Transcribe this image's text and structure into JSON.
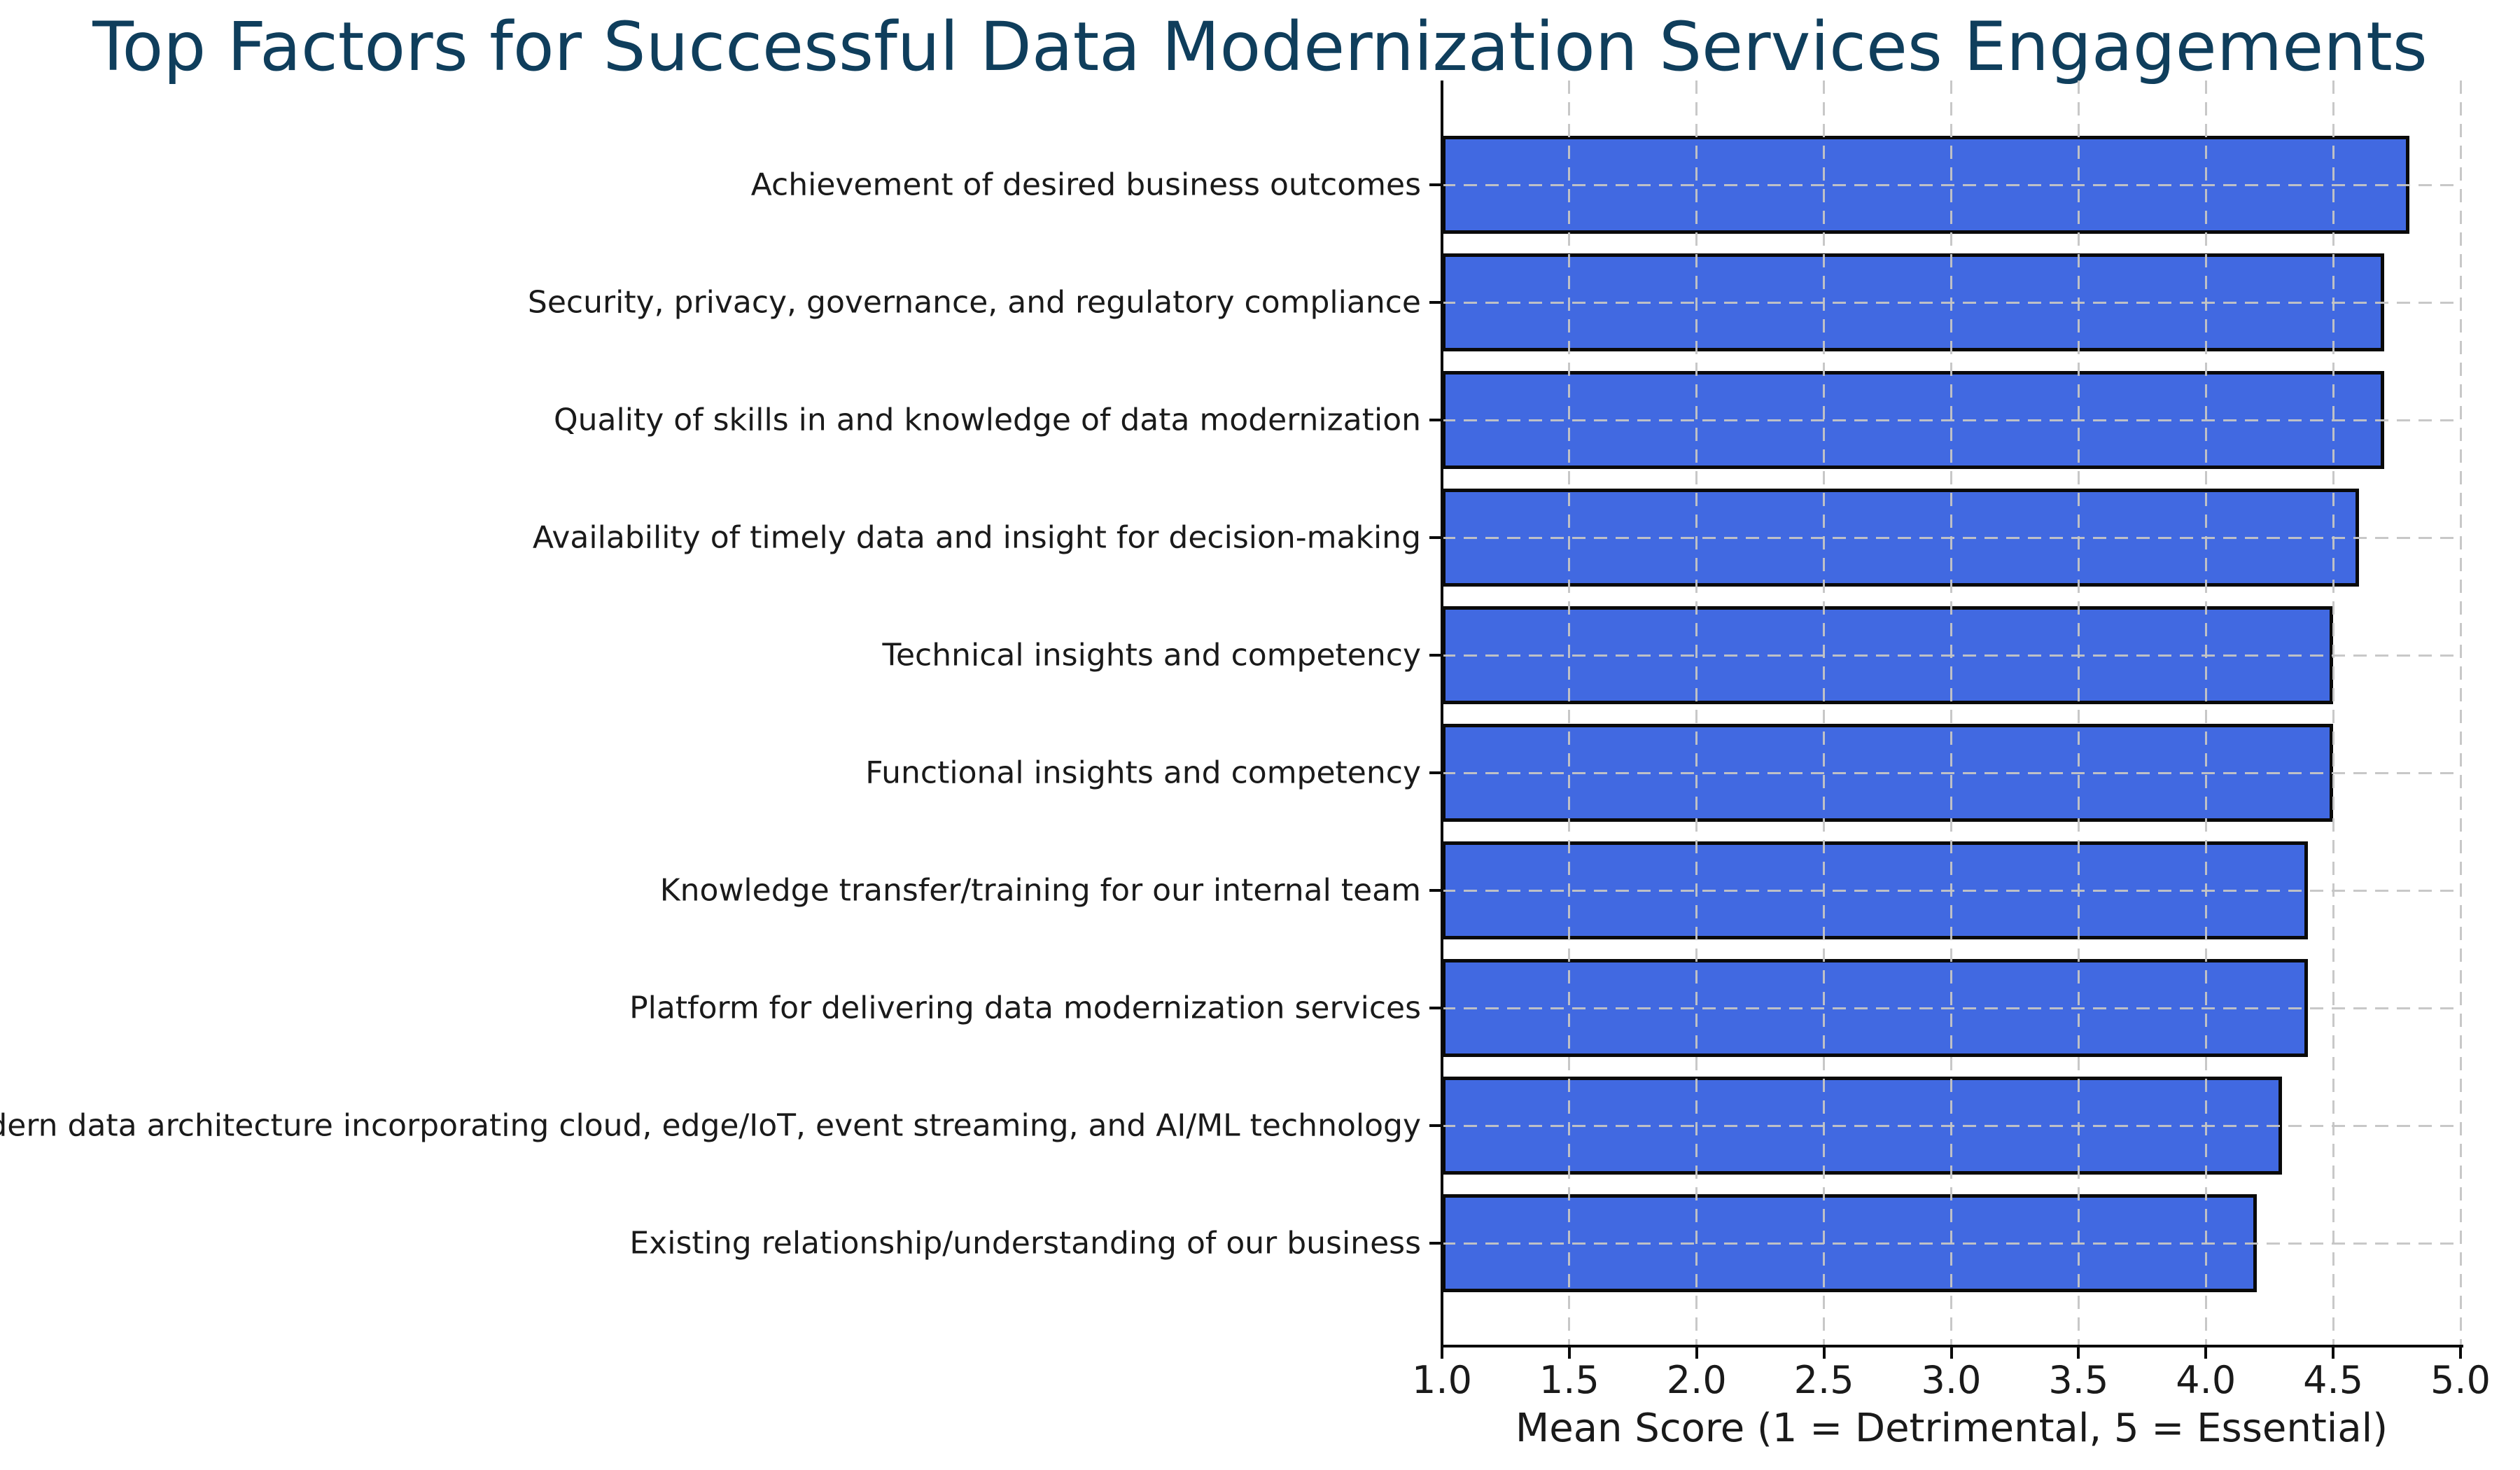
{
  "chart_data": {
    "type": "bar",
    "orientation": "horizontal",
    "title": "Top Factors for Successful Data Modernization Services Engagements",
    "xlabel": "Mean Score (1 = Detrimental, 5 = Essential)",
    "ylabel": "",
    "xlim": [
      1.0,
      5.0
    ],
    "x_ticks": [
      1.0,
      1.5,
      2.0,
      2.5,
      3.0,
      3.5,
      4.0,
      4.5,
      5.0
    ],
    "x_tick_labels": [
      "1.0",
      "1.5",
      "2.0",
      "2.5",
      "3.0",
      "3.5",
      "4.0",
      "4.5",
      "5.0"
    ],
    "grid": "dashed gray, x and y, drawn above bars",
    "legend": "none",
    "categories": [
      "Achievement of desired business outcomes",
      "Security, privacy, governance, and regulatory compliance",
      "Quality of skills in and knowledge of data modernization",
      "Availability of timely data and insight for decision-making",
      "Technical insights and competency",
      "Functional insights and competency",
      "Knowledge transfer/training for our internal team",
      "Platform for delivering data modernization services",
      "Modern data architecture incorporating cloud, edge/IoT, event streaming, and AI/ML technology",
      "Existing relationship/understanding of our business"
    ],
    "values": [
      4.8,
      4.7,
      4.7,
      4.6,
      4.5,
      4.5,
      4.4,
      4.4,
      4.3,
      4.2
    ],
    "colors": {
      "bar_fill": "#4169e1",
      "bar_edge": "#0a0a0a",
      "title_text": "#0f3e5c",
      "axis_text": "#1a1a1a",
      "gridline": "#c5c5c5",
      "background": "#ffffff"
    }
  }
}
